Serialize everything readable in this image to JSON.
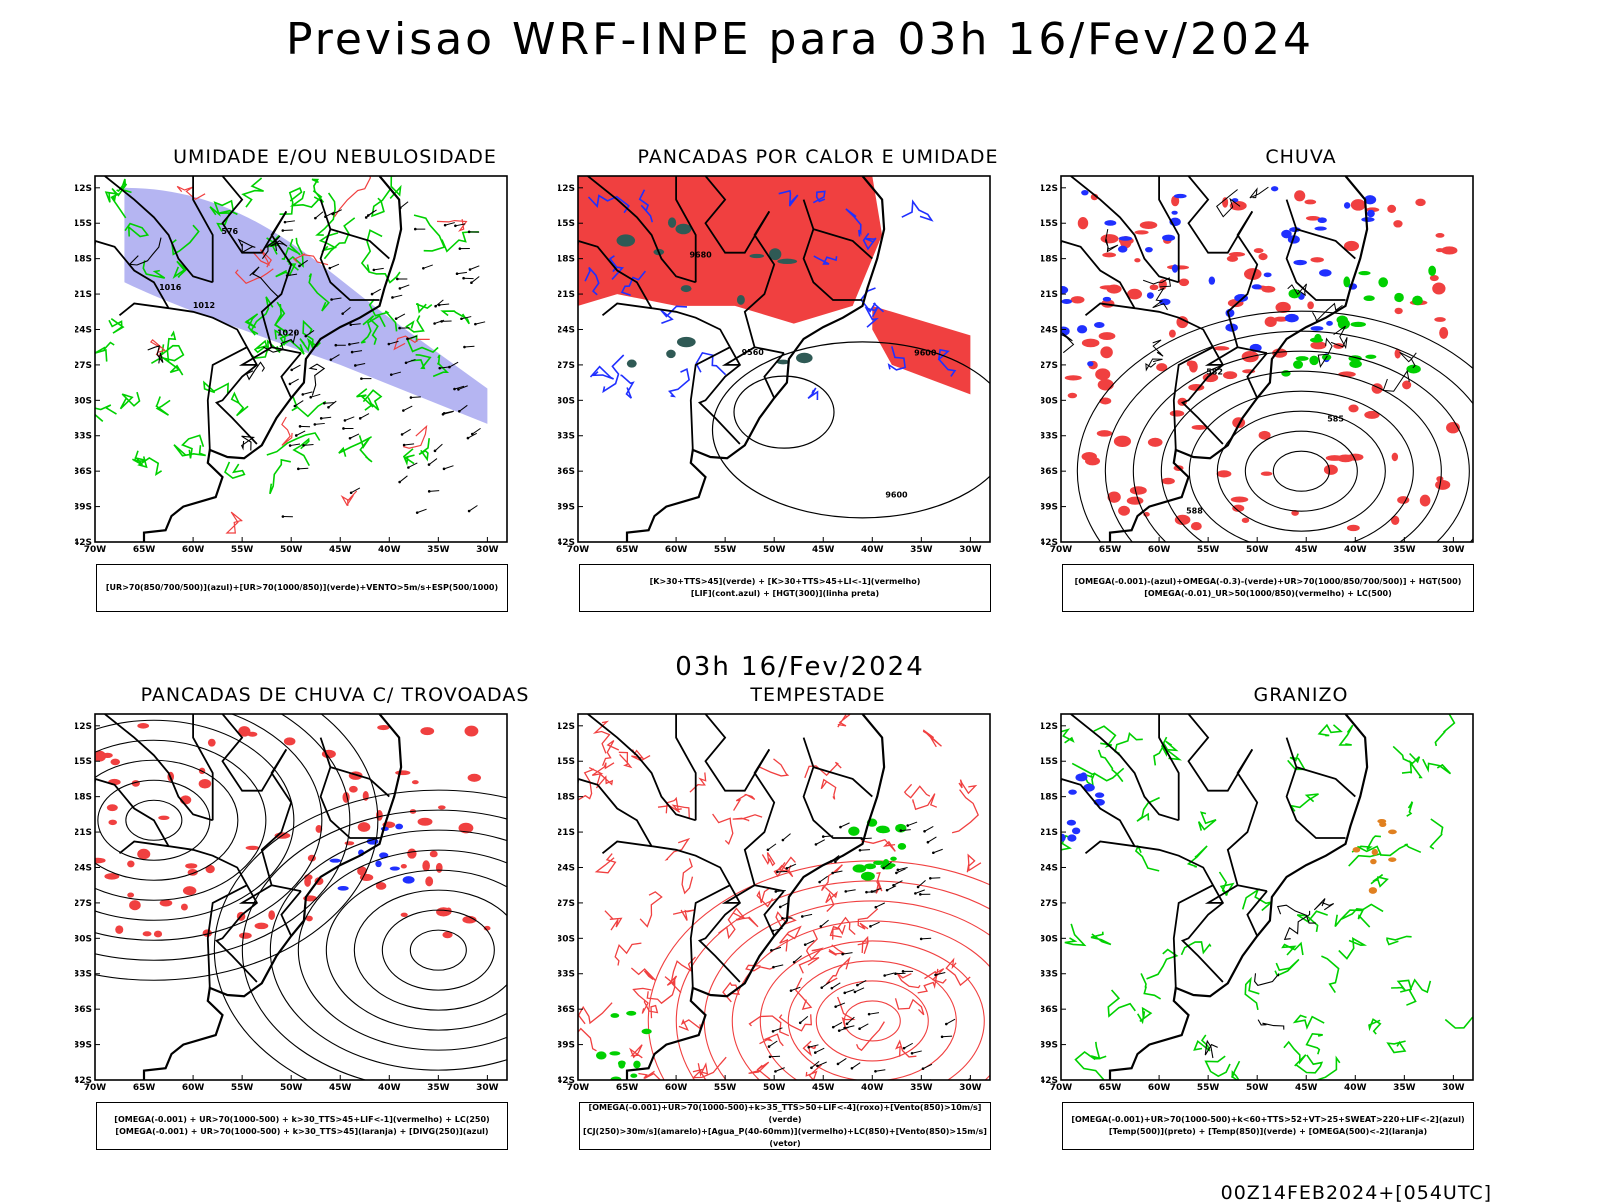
{
  "header": {
    "title": "Previsao WRF-INPE  para 03h 16/Fev/2024"
  },
  "subheader": {
    "title": "03h 16/Fev/2024"
  },
  "footer": {
    "stamp": "00Z14FEB2024+[054UTC]"
  },
  "axes": {
    "lat_labels": [
      "12S",
      "15S",
      "18S",
      "21S",
      "24S",
      "27S",
      "30S",
      "33S",
      "36S",
      "39S",
      "42S"
    ],
    "lon_labels": [
      "70W",
      "65W",
      "60W",
      "55W",
      "50W",
      "45W",
      "40W",
      "35W",
      "30W"
    ]
  },
  "colors": {
    "blue": "#2030ff",
    "green": "#00d000",
    "red": "#f04040",
    "lavender": "#a8a8f0",
    "darkteal": "#2f5a55",
    "orange": "#e08020",
    "purple": "#9020c0"
  },
  "panels": [
    {
      "id": "umidade",
      "title": "UMIDADE E/OU NEBULOSIDADE",
      "legend": [
        "[UR>70(850/700/500)](azul)+[UR>70(1000/850)](verde)+VENTO>5m/s+ESP(500/1000)"
      ],
      "contour_labels": [
        "1012",
        "1016",
        "1020",
        "576"
      ]
    },
    {
      "id": "pancadas-calor",
      "title": "PANCADAS POR CALOR E UMIDADE",
      "legend": [
        "[K>30+TTS>45](verde) + [K>30+TTS>45+LI<-1](vermelho)",
        "[LIF](cont.azul) + [HGT(300)](linha preta)"
      ],
      "contour_labels": [
        "9680",
        "9600",
        "9560",
        "9600"
      ]
    },
    {
      "id": "chuva",
      "title": "CHUVA",
      "legend": [
        "[OMEGA(-0.001)-(azul)+OMEGA(-0.3)-(verde)+UR>70(1000/850/700/500)] + HGT(500)",
        "[OMEGA(-0.01)_UR>50(1000/850)(vermelho) + LC(500)"
      ],
      "contour_labels": [
        "588",
        "585",
        "582"
      ]
    },
    {
      "id": "pancadas-trovoadas",
      "title": "PANCADAS DE CHUVA C/ TROVOADAS",
      "legend": [
        "[OMEGA(-0.001) + UR>70(1000-500) + k>30_TTS>45+LIF<-1](vermelho) + LC(250)",
        "[OMEGA(-0.001) + UR>70(1000-500) + k>30_TTS>45](laranja) + [DIVG(250)](azul)"
      ],
      "contour_labels": []
    },
    {
      "id": "tempestade",
      "title": "TEMPESTADE",
      "legend": [
        "[OMEGA(-0.001)+UR>70(1000-500)+k>35_TTS>50+LIF<-4](roxo)+[Vento(850)>10m/s](verde)",
        "[CJ(250)>30m/s](amarelo)+[Agua_P(40-60mm)](vermelho)+LC(850)+[Vento(850)>15m/s](vetor)"
      ],
      "contour_labels": []
    },
    {
      "id": "granizo",
      "title": "GRANIZO",
      "legend": [
        "[OMEGA(-0.001)+UR>70(1000-500)+k<60+TTS>52+VT>25+SWEAT>220+LIF<-2](azul)",
        "[Temp(500)](preto) + [Temp(850)](verde) + [OMEGA(500)<-2](laranja)"
      ],
      "contour_labels": []
    }
  ]
}
